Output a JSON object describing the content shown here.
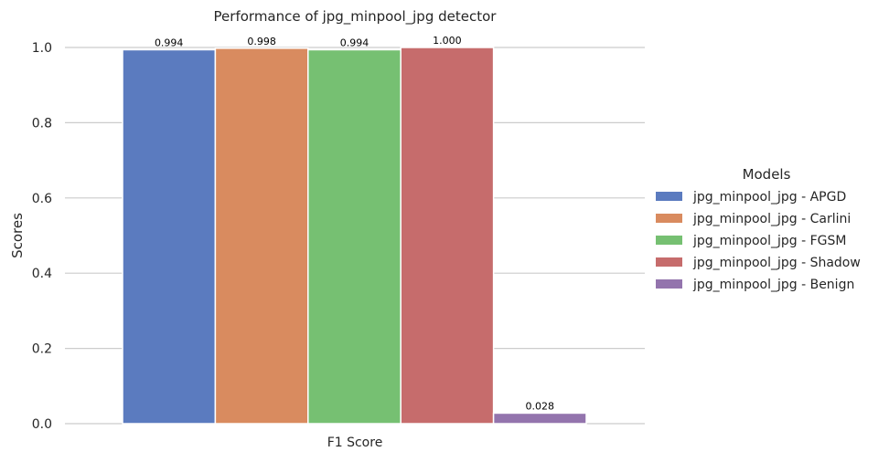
{
  "chart_data": {
    "type": "bar",
    "title": "Performance of jpg_minpool_jpg detector",
    "xlabel": "",
    "ylabel": "Scores",
    "categories": [
      "F1 Score"
    ],
    "ylim": [
      0,
      1.0
    ],
    "yticks": [
      "0.0",
      "0.2",
      "0.4",
      "0.6",
      "0.8",
      "1.0"
    ],
    "grid": true,
    "legend": {
      "title": "Models",
      "placement": "right"
    },
    "series": [
      {
        "name": "jpg_minpool_jpg - APGD",
        "values": [
          0.994
        ],
        "label": "0.994",
        "color": "#5b7bbf"
      },
      {
        "name": "jpg_minpool_jpg - Carlini",
        "values": [
          0.998
        ],
        "label": "0.998",
        "color": "#d98b5f"
      },
      {
        "name": "jpg_minpool_jpg - FGSM",
        "values": [
          0.994
        ],
        "label": "0.994",
        "color": "#76c072"
      },
      {
        "name": "jpg_minpool_jpg - Shadow",
        "values": [
          1.0
        ],
        "label": "1.000",
        "color": "#c66c6c"
      },
      {
        "name": "jpg_minpool_jpg - Benign",
        "values": [
          0.028
        ],
        "label": "0.028",
        "color": "#9374ad"
      }
    ]
  }
}
